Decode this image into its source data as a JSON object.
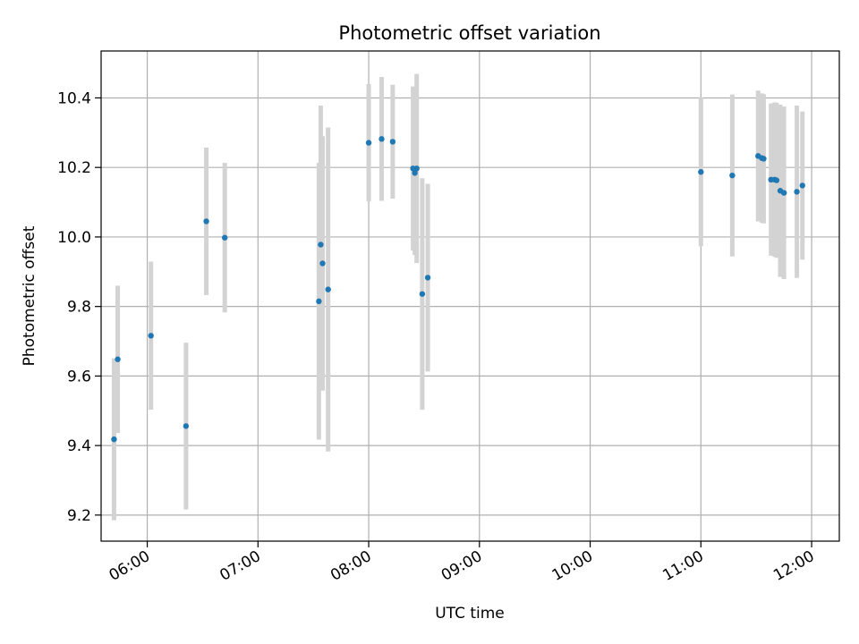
{
  "chart_data": {
    "type": "scatter",
    "title": "Photometric offset variation",
    "xlabel": "UTC time",
    "ylabel": "Photometric offset",
    "xlim": [
      "05:35",
      "12:15"
    ],
    "ylim": [
      9.125,
      10.535
    ],
    "x_ticks": [
      "06:00",
      "07:00",
      "08:00",
      "09:00",
      "10:00",
      "11:00",
      "12:00"
    ],
    "y_ticks": [
      "9.2",
      "9.4",
      "9.6",
      "9.8",
      "10.0",
      "10.2",
      "10.4"
    ],
    "grid": true,
    "colors": {
      "points": "#1f77b4",
      "error_bars": "#d3d3d3",
      "grid": "#b0b0b0"
    },
    "points": [
      {
        "x": "05:42",
        "y": 9.418,
        "err": 0.233
      },
      {
        "x": "05:44",
        "y": 9.648,
        "err": 0.212
      },
      {
        "x": "06:02",
        "y": 9.716,
        "err": 0.213
      },
      {
        "x": "06:21",
        "y": 9.456,
        "err": 0.24
      },
      {
        "x": "06:32",
        "y": 10.045,
        "err": 0.212
      },
      {
        "x": "06:42",
        "y": 9.998,
        "err": 0.215
      },
      {
        "x": "07:33",
        "y": 9.815,
        "err": 0.398
      },
      {
        "x": "07:34",
        "y": 9.978,
        "err": 0.4
      },
      {
        "x": "07:35",
        "y": 9.924,
        "err": 0.366
      },
      {
        "x": "07:38",
        "y": 9.849,
        "err": 0.466
      },
      {
        "x": "08:00",
        "y": 10.271,
        "err": 0.169
      },
      {
        "x": "08:07",
        "y": 10.282,
        "err": 0.178
      },
      {
        "x": "08:13",
        "y": 10.274,
        "err": 0.164
      },
      {
        "x": "08:24",
        "y": 10.197,
        "err": 0.236
      },
      {
        "x": "08:25",
        "y": 10.184,
        "err": 0.236
      },
      {
        "x": "08:26",
        "y": 10.197,
        "err": 0.272
      },
      {
        "x": "08:29",
        "y": 9.836,
        "err": 0.333
      },
      {
        "x": "08:32",
        "y": 9.883,
        "err": 0.27
      },
      {
        "x": "11:00",
        "y": 10.187,
        "err": 0.214
      },
      {
        "x": "11:17",
        "y": 10.177,
        "err": 0.233
      },
      {
        "x": "11:31",
        "y": 10.233,
        "err": 0.188
      },
      {
        "x": "11:33",
        "y": 10.227,
        "err": 0.186
      },
      {
        "x": "11:34",
        "y": 10.225,
        "err": 0.186
      },
      {
        "x": "11:38",
        "y": 10.165,
        "err": 0.219
      },
      {
        "x": "11:40",
        "y": 10.165,
        "err": 0.222
      },
      {
        "x": "11:41",
        "y": 10.163,
        "err": 0.223
      },
      {
        "x": "11:43",
        "y": 10.133,
        "err": 0.248
      },
      {
        "x": "11:45",
        "y": 10.127,
        "err": 0.248
      },
      {
        "x": "11:52",
        "y": 10.13,
        "err": 0.248
      },
      {
        "x": "11:55",
        "y": 10.148,
        "err": 0.213
      }
    ]
  }
}
